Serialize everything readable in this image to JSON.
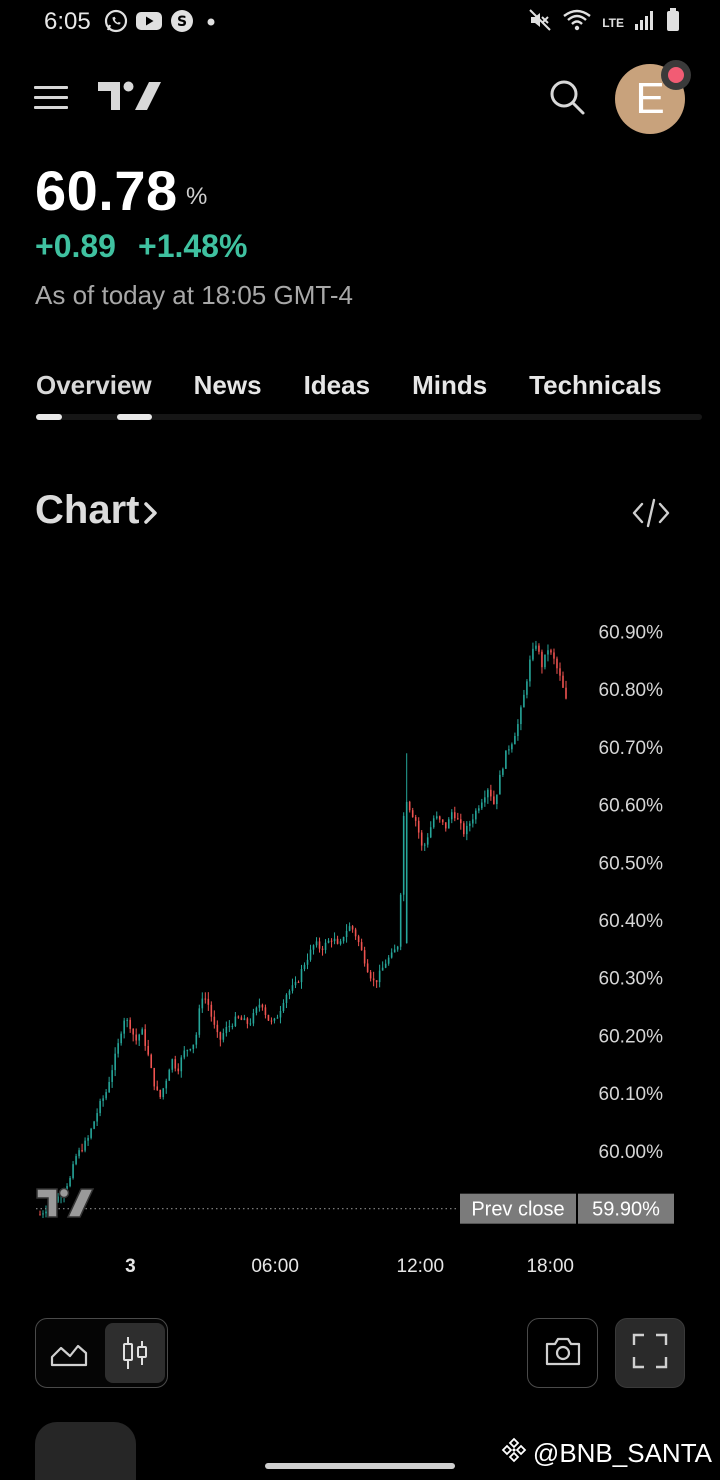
{
  "status": {
    "time": "6:05",
    "network": "LTE"
  },
  "header": {
    "avatar_letter": "E"
  },
  "quote": {
    "price": "60.78",
    "unit": "%",
    "change": "+0.89",
    "change_pct": "+1.48%",
    "as_of": "As of today at 18:05 GMT-4"
  },
  "tabs": [
    "Overview",
    "News",
    "Ideas",
    "Minds",
    "Technicals"
  ],
  "chart_section": {
    "title": "Chart"
  },
  "chart_data": {
    "type": "candlestick",
    "y_tick_labels": [
      "60.90%",
      "60.80%",
      "60.70%",
      "60.60%",
      "60.50%",
      "60.40%",
      "60.30%",
      "60.20%",
      "60.10%",
      "60.00%"
    ],
    "y_ticks": [
      60.9,
      60.8,
      60.7,
      60.6,
      60.5,
      60.4,
      60.3,
      60.2,
      60.1,
      60.0
    ],
    "ylim": [
      59.87,
      60.93
    ],
    "x_tick_labels": [
      "3",
      "06:00",
      "12:00",
      "18:00"
    ],
    "prev_close": {
      "label": "Prev close",
      "value_label": "59.90%",
      "value": 59.9
    },
    "close_path": [
      [
        0,
        59.89
      ],
      [
        3,
        59.92
      ],
      [
        5,
        59.95
      ],
      [
        6,
        59.99
      ],
      [
        8,
        60.02
      ],
      [
        9,
        60.05
      ],
      [
        10,
        60.08
      ],
      [
        11,
        60.1
      ],
      [
        12,
        60.14
      ],
      [
        13,
        60.18
      ],
      [
        14,
        60.23
      ],
      [
        15,
        60.22
      ],
      [
        16,
        60.19
      ],
      [
        17,
        60.21
      ],
      [
        18,
        60.17
      ],
      [
        19,
        60.12
      ],
      [
        20,
        60.09
      ],
      [
        21,
        60.12
      ],
      [
        22,
        60.16
      ],
      [
        23,
        60.14
      ],
      [
        24,
        60.17
      ],
      [
        26,
        60.19
      ],
      [
        27,
        60.27
      ],
      [
        28,
        60.26
      ],
      [
        29,
        60.22
      ],
      [
        30,
        60.19
      ],
      [
        31,
        60.21
      ],
      [
        33,
        60.23
      ],
      [
        35,
        60.22
      ],
      [
        36,
        60.24
      ],
      [
        37,
        60.26
      ],
      [
        38,
        60.23
      ],
      [
        39,
        60.22
      ],
      [
        40,
        60.24
      ],
      [
        41,
        60.27
      ],
      [
        42,
        60.28
      ],
      [
        43,
        60.29
      ],
      [
        44,
        60.32
      ],
      [
        45,
        60.34
      ],
      [
        46,
        60.36
      ],
      [
        47,
        60.35
      ],
      [
        48,
        60.36
      ],
      [
        49,
        60.37
      ],
      [
        50,
        60.35
      ],
      [
        51,
        60.38
      ],
      [
        52,
        60.39
      ],
      [
        53,
        60.37
      ],
      [
        54,
        60.34
      ],
      [
        55,
        60.31
      ],
      [
        56,
        60.29
      ],
      [
        57,
        60.31
      ],
      [
        58,
        60.33
      ],
      [
        59,
        60.34
      ],
      [
        60,
        60.36
      ],
      [
        61,
        60.62
      ],
      [
        62,
        60.59
      ],
      [
        63,
        60.57
      ],
      [
        64,
        60.52
      ],
      [
        65,
        60.55
      ],
      [
        66,
        60.58
      ],
      [
        67,
        60.57
      ],
      [
        68,
        60.56
      ],
      [
        69,
        60.59
      ],
      [
        70,
        60.57
      ],
      [
        71,
        60.55
      ],
      [
        72,
        60.57
      ],
      [
        73,
        60.59
      ],
      [
        74,
        60.61
      ],
      [
        75,
        60.63
      ],
      [
        76,
        60.6
      ],
      [
        77,
        60.65
      ],
      [
        78,
        60.69
      ],
      [
        79,
        60.71
      ],
      [
        80,
        60.74
      ],
      [
        81,
        60.79
      ],
      [
        82,
        60.85
      ],
      [
        83,
        60.88
      ],
      [
        84,
        60.84
      ],
      [
        85,
        60.87
      ],
      [
        86,
        60.85
      ],
      [
        87,
        60.82
      ],
      [
        88,
        60.78
      ]
    ]
  },
  "footer": {
    "watermark": "@BNB_SANTA"
  }
}
